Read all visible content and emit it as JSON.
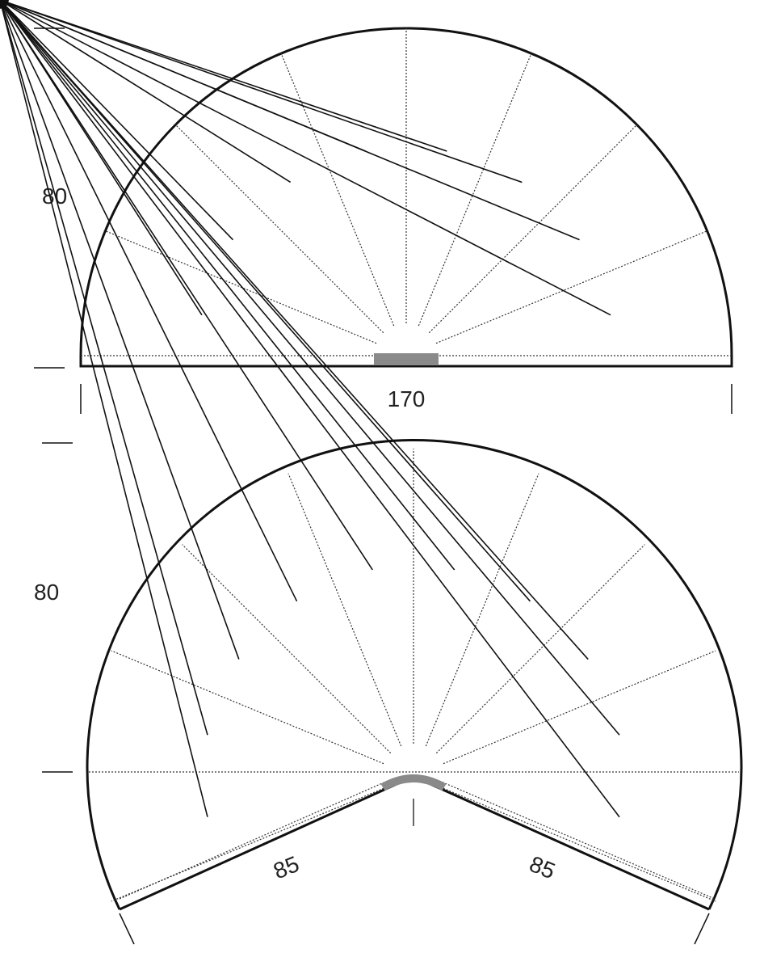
{
  "top_diagram": {
    "height_label": "80",
    "width_label": "170",
    "sectors": 8
  },
  "bottom_diagram": {
    "height_label": "80",
    "left_side_label": "85",
    "right_side_label": "85",
    "sectors": 10
  },
  "colors": {
    "line": "#111111",
    "accent_gray": "#8a8a8a"
  }
}
